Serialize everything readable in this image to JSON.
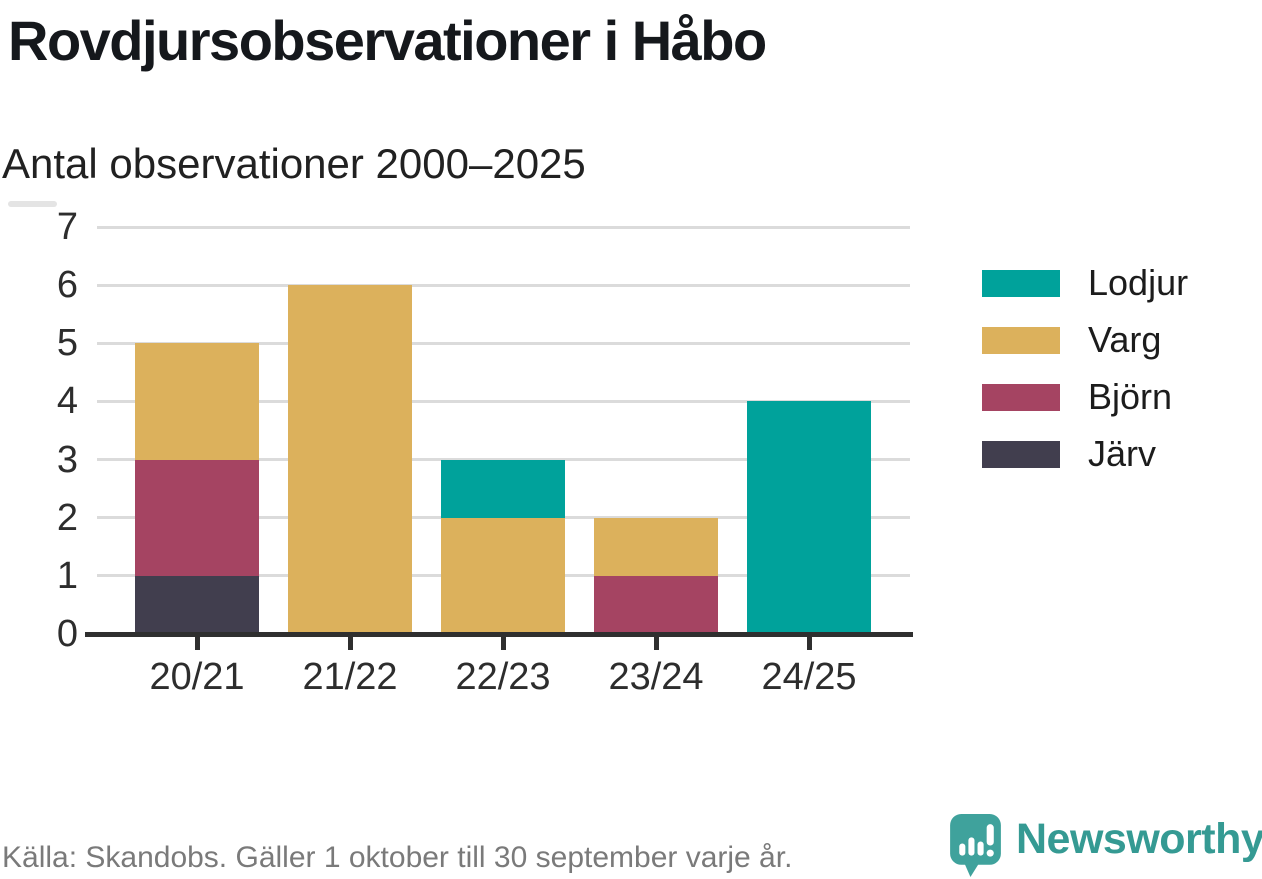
{
  "header": {
    "title": "Rovdjursobservationer i Håbo",
    "subtitle": "Antal observationer 2000–2025"
  },
  "chart_data": {
    "type": "bar",
    "stacked": true,
    "title": "Rovdjursobservationer i Håbo",
    "subtitle": "Antal observationer 2000–2025",
    "categories": [
      "20/21",
      "21/22",
      "22/23",
      "23/24",
      "24/25"
    ],
    "series": [
      {
        "name": "Järv",
        "color": "#413e4e",
        "values": [
          1,
          0,
          0,
          0,
          0
        ]
      },
      {
        "name": "Björn",
        "color": "#a54462",
        "values": [
          2,
          0,
          0,
          1,
          0
        ]
      },
      {
        "name": "Varg",
        "color": "#dcb15c",
        "values": [
          2,
          6,
          2,
          1,
          0
        ]
      },
      {
        "name": "Lodjur",
        "color": "#00a29b",
        "values": [
          0,
          0,
          1,
          0,
          4
        ]
      }
    ],
    "totals": [
      5,
      6,
      3,
      2,
      4
    ],
    "xlabel": "",
    "ylabel": "",
    "ylim": [
      0,
      7
    ],
    "yticks": [
      0,
      1,
      2,
      3,
      4,
      5,
      6,
      7
    ],
    "grid": "horizontal",
    "legend_position": "right",
    "legend_order": [
      "Lodjur",
      "Varg",
      "Björn",
      "Järv"
    ]
  },
  "footer": {
    "source": "Källa: Skandobs. Gäller 1 oktober till 30 september varje år.",
    "brand": "Newsworthy",
    "logo_icon": "newsworthy-speech-bubble-bar-chart-icon",
    "brand_text_color": "#359a93",
    "brand_icon_color": "#3fa29c"
  },
  "colors": {
    "axis": "#2f2f2f",
    "gridline": "#dbdbdb",
    "background": "#ffffff"
  }
}
